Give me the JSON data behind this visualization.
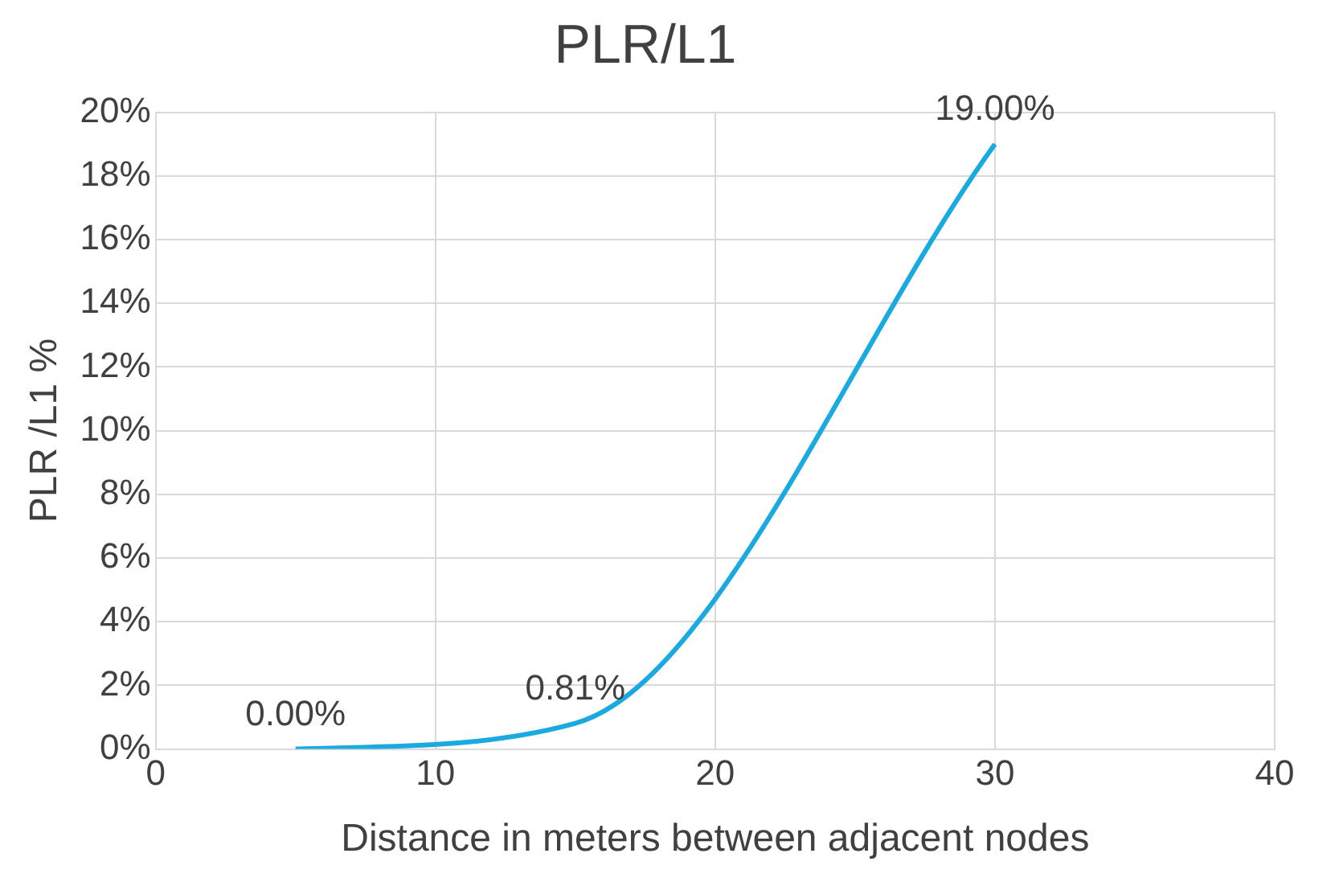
{
  "chart_data": {
    "type": "line",
    "title": "PLR/L1",
    "xlabel": "Distance in meters between adjacent nodes",
    "ylabel": "PLR /L1 %",
    "x": [
      5,
      15,
      30
    ],
    "series": [
      {
        "color": "#1ba9e1",
        "values": [
          0,
          0.81,
          19
        ],
        "value_labels": [
          "0.00%",
          "0.81%",
          "19.00%"
        ]
      }
    ],
    "xlim": [
      0,
      40
    ],
    "xticks": [
      0,
      10,
      20,
      30,
      40
    ],
    "ylim": [
      0,
      20
    ],
    "yticks": [
      {
        "value": 0,
        "label": "0%"
      },
      {
        "value": 2,
        "label": "2%"
      },
      {
        "value": 4,
        "label": "4%"
      },
      {
        "value": 6,
        "label": "6%"
      },
      {
        "value": 8,
        "label": "8%"
      },
      {
        "value": 10,
        "label": "10%"
      },
      {
        "value": 12,
        "label": "12%"
      },
      {
        "value": 14,
        "label": "14%"
      },
      {
        "value": 16,
        "label": "16%"
      },
      {
        "value": 18,
        "label": "18%"
      },
      {
        "value": 20,
        "label": "20%"
      }
    ],
    "grid": true,
    "legend": false,
    "marker": "none",
    "line_style": "solid"
  }
}
